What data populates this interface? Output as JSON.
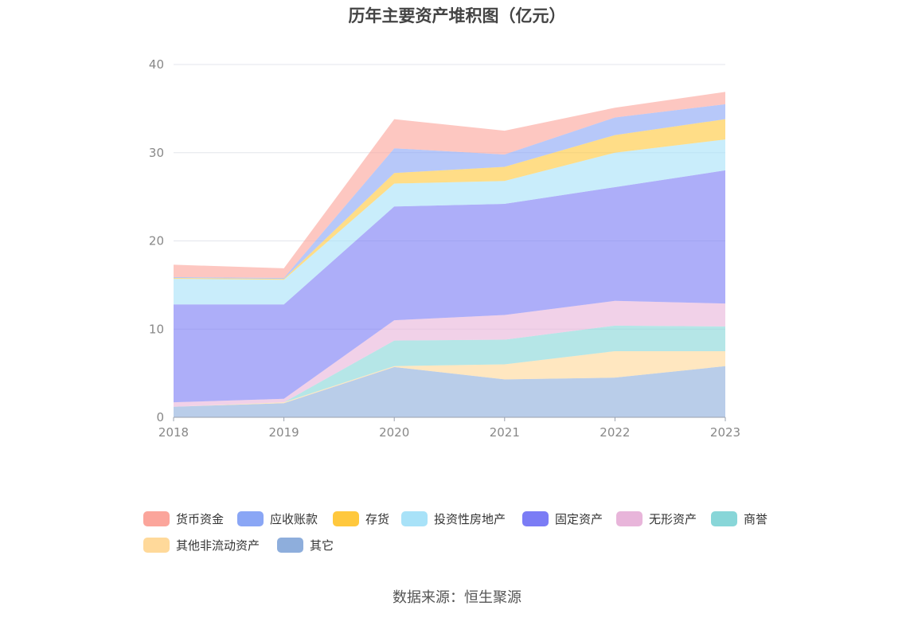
{
  "chart_data": {
    "type": "area",
    "stacked": true,
    "title": "历年主要资产堆积图（亿元）",
    "x": [
      "2018",
      "2019",
      "2020",
      "2021",
      "2022",
      "2023"
    ],
    "ylim": [
      0,
      40
    ],
    "yticks": [
      "0",
      "10",
      "20",
      "30",
      "40"
    ],
    "grid": true,
    "legend_position": "bottom",
    "series": [
      {
        "name": "其它",
        "color": "#8eaedc",
        "values": [
          1.2,
          1.6,
          5.7,
          4.3,
          4.5,
          5.8
        ]
      },
      {
        "name": "其他非流动资产",
        "color": "#ffd99a",
        "values": [
          0.0,
          0.1,
          0.1,
          1.7,
          3.0,
          1.7
        ]
      },
      {
        "name": "商誉",
        "color": "#88d6d8",
        "values": [
          0.0,
          0.0,
          2.9,
          2.8,
          2.9,
          2.8
        ]
      },
      {
        "name": "无形资产",
        "color": "#e8b5da",
        "values": [
          0.5,
          0.4,
          2.3,
          2.8,
          2.8,
          2.6
        ]
      },
      {
        "name": "固定资产",
        "color": "#7b7cf5",
        "values": [
          11.1,
          10.7,
          12.9,
          12.6,
          12.9,
          15.1
        ]
      },
      {
        "name": "投资性房地产",
        "color": "#a8e2f8",
        "values": [
          2.9,
          2.8,
          2.6,
          2.6,
          3.9,
          3.5
        ]
      },
      {
        "name": "存货",
        "color": "#ffc83d",
        "values": [
          0.1,
          0.1,
          1.2,
          1.6,
          2.0,
          2.3
        ]
      },
      {
        "name": "应收账款",
        "color": "#8aa6f5",
        "values": [
          0.1,
          0.1,
          2.8,
          1.4,
          2.0,
          1.7
        ]
      },
      {
        "name": "货币资金",
        "color": "#fba59b",
        "values": [
          1.4,
          1.1,
          3.3,
          2.7,
          1.1,
          1.4
        ]
      }
    ],
    "legend_order": [
      "货币资金",
      "应收账款",
      "存货",
      "投资性房地产",
      "固定资产",
      "无形资产",
      "商誉",
      "其他非流动资产",
      "其它"
    ]
  },
  "source": "数据来源：恒生聚源"
}
